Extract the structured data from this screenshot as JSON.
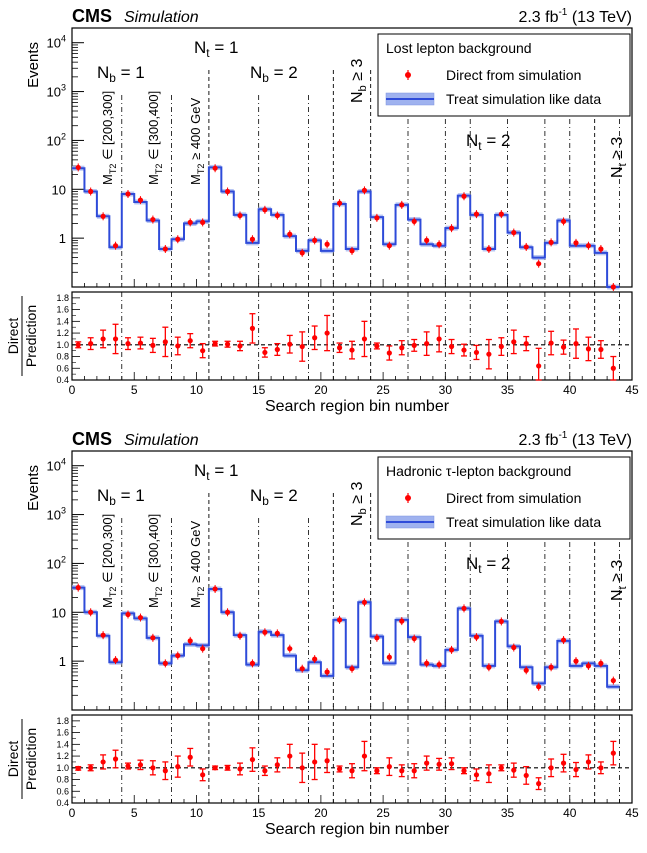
{
  "chart_data": [
    {
      "type": "line",
      "header": {
        "experiment": "CMS",
        "tag": "Simulation",
        "lumi": "2.3 fb",
        "lumi_sup": "-1",
        "energy": "(13 TeV)"
      },
      "legend_title": "Lost lepton background",
      "series": [
        {
          "name": "Direct from simulation",
          "style": "points",
          "color": "#ff0000",
          "values": [
            28,
            9,
            2.8,
            0.7,
            8,
            6,
            2.4,
            0.6,
            0.95,
            2.1,
            2.1,
            27,
            9,
            2.9,
            0.95,
            3.8,
            2.9,
            1.2,
            0.5,
            0.9,
            0.75,
            5.2,
            0.55,
            9.5,
            2.6,
            0.7,
            4.8,
            2.2,
            0.9,
            0.75,
            1.6,
            7.2,
            3.1,
            0.6,
            3.1,
            1.3,
            0.66,
            0.3,
            0.82,
            2.2,
            0.8,
            0.7,
            0.6,
            0.1
          ]
        },
        {
          "name": "Treat simulation like data",
          "style": "step",
          "color": "#2e4bd9",
          "values": [
            27,
            9,
            2.8,
            0.65,
            8,
            5.5,
            2.3,
            0.6,
            0.95,
            2,
            2.2,
            28,
            9,
            3,
            0.8,
            3.9,
            3,
            1.1,
            0.55,
            0.9,
            0.55,
            5,
            0.6,
            9,
            2.7,
            0.75,
            4.8,
            2.4,
            0.75,
            0.7,
            1.6,
            7.4,
            3,
            0.6,
            3,
            1.3,
            0.65,
            0.4,
            0.8,
            2.3,
            0.7,
            0.7,
            0.5,
            0.1
          ]
        }
      ],
      "ratio": {
        "ylabel_top": "Direct",
        "ylabel_bottom": "Prediction",
        "ylim": [
          0.4,
          1.9
        ],
        "values": [
          1.0,
          1.02,
          1.1,
          1.1,
          1.02,
          1.03,
          0.99,
          1.05,
          0.98,
          1.07,
          0.9,
          1.02,
          1.01,
          0.98,
          1.28,
          0.87,
          0.92,
          1.01,
          0.97,
          1.12,
          1.2,
          0.95,
          0.91,
          1.1,
          0.98,
          0.86,
          0.95,
          0.99,
          1.02,
          1.1,
          0.97,
          0.91,
          0.87,
          0.84,
          0.97,
          1.05,
          1.02,
          0.64,
          1.03,
          0.96,
          1.02,
          0.93,
          0.92,
          0.6
        ],
        "errors": [
          0.05,
          0.1,
          0.15,
          0.25,
          0.1,
          0.1,
          0.12,
          0.25,
          0.15,
          0.12,
          0.12,
          0.04,
          0.05,
          0.08,
          0.25,
          0.08,
          0.1,
          0.15,
          0.25,
          0.2,
          0.3,
          0.08,
          0.15,
          0.3,
          0.05,
          0.12,
          0.12,
          0.1,
          0.2,
          0.22,
          0.12,
          0.1,
          0.12,
          0.25,
          0.15,
          0.2,
          0.12,
          0.3,
          0.2,
          0.12,
          0.25,
          0.2,
          0.15,
          0.2
        ]
      },
      "xlabel": "Search region bin number",
      "ylabel": "Events",
      "xlim": [
        0,
        45
      ],
      "ylim": [
        0.1,
        20000
      ],
      "log_y": true,
      "xticks": [
        "0",
        "5",
        "10",
        "15",
        "20",
        "25",
        "30",
        "35",
        "40",
        "45"
      ],
      "yticks": [
        "1",
        "10",
        "10²",
        "10³",
        "10⁴"
      ],
      "annotations": {
        "nt1": "N = 1",
        "nb1": "N = 1",
        "nb2": "N = 2",
        "nb3": "N ≥ 3",
        "nt2": "N = 2",
        "nt3": "N ≥ 3",
        "m1": "M ∈ [200,300]",
        "m2": "M ∈ [300,400]",
        "m3": "M ≥ 400 GeV"
      }
    },
    {
      "type": "line",
      "header": {
        "experiment": "CMS",
        "tag": "Simulation",
        "lumi": "2.3 fb",
        "lumi_sup": "-1",
        "energy": "(13 TeV)"
      },
      "legend_title": "Hadronic τ-lepton background",
      "series": [
        {
          "name": "Direct from simulation",
          "style": "points",
          "color": "#ff0000",
          "values": [
            32,
            10,
            3.4,
            1.05,
            9,
            7.8,
            3,
            0.9,
            1.3,
            2.6,
            1.8,
            30,
            10,
            3.3,
            0.9,
            3.9,
            3.7,
            1.8,
            0.7,
            1.1,
            0.6,
            7,
            0.7,
            16,
            3,
            1.2,
            6.6,
            2.9,
            0.9,
            0.85,
            1.7,
            12,
            3.1,
            0.75,
            6.5,
            1.9,
            0.65,
            0.3,
            0.75,
            2.7,
            1.0,
            0.8,
            0.9,
            0.4
          ]
        },
        {
          "name": "Treat simulation like data",
          "style": "step",
          "color": "#2e4bd9",
          "values": [
            32,
            10,
            3.3,
            0.95,
            9.5,
            7.5,
            3,
            0.9,
            1.3,
            2.2,
            2.1,
            30,
            10,
            3.4,
            0.85,
            4,
            3.4,
            1.3,
            0.65,
            0.95,
            0.5,
            7,
            0.75,
            16,
            3.2,
            0.9,
            7,
            3.1,
            0.85,
            0.8,
            1.7,
            12,
            3.3,
            0.8,
            6.5,
            2,
            0.75,
            0.35,
            0.75,
            2.6,
            0.8,
            0.9,
            0.8,
            0.3
          ]
        }
      ],
      "ratio": {
        "ylabel_top": "Direct",
        "ylabel_bottom": "Prediction",
        "ylim": [
          0.4,
          1.9
        ],
        "values": [
          0.99,
          1.0,
          1.1,
          1.15,
          1.03,
          1.05,
          1.0,
          0.95,
          1.02,
          1.18,
          0.88,
          1.0,
          1.0,
          0.98,
          1.14,
          0.95,
          1.05,
          1.2,
          1.0,
          1.1,
          1.12,
          0.98,
          0.95,
          1.2,
          0.95,
          1.02,
          0.95,
          0.95,
          1.08,
          1.06,
          1.07,
          0.95,
          0.88,
          0.9,
          1.0,
          0.96,
          0.87,
          0.73,
          1.0,
          1.08,
          0.97,
          1.1,
          1.0,
          1.25
        ],
        "errors": [
          0.03,
          0.05,
          0.12,
          0.15,
          0.05,
          0.08,
          0.12,
          0.15,
          0.18,
          0.15,
          0.1,
          0.03,
          0.04,
          0.1,
          0.2,
          0.08,
          0.12,
          0.2,
          0.25,
          0.3,
          0.2,
          0.05,
          0.12,
          0.25,
          0.05,
          0.15,
          0.1,
          0.12,
          0.12,
          0.1,
          0.1,
          0.05,
          0.1,
          0.15,
          0.05,
          0.12,
          0.15,
          0.1,
          0.15,
          0.15,
          0.12,
          0.12,
          0.1,
          0.2
        ]
      },
      "xlabel": "Search region bin number",
      "ylabel": "Events",
      "xlim": [
        0,
        45
      ],
      "ylim": [
        0.1,
        20000
      ],
      "log_y": true,
      "xticks": [
        "0",
        "5",
        "10",
        "15",
        "20",
        "25",
        "30",
        "35",
        "40",
        "45"
      ],
      "yticks": [
        "1",
        "10",
        "10²",
        "10³",
        "10⁴"
      ],
      "annotations": {
        "nt1": "N = 1",
        "nb1": "N = 1",
        "nb2": "N = 2",
        "nb3": "N ≥ 3",
        "nt2": "N = 2",
        "nt3": "N ≥ 3",
        "m1": "M ∈ [200,300]",
        "m2": "M ∈ [300,400]",
        "m3": "M ≥ 400 GeV"
      }
    }
  ]
}
